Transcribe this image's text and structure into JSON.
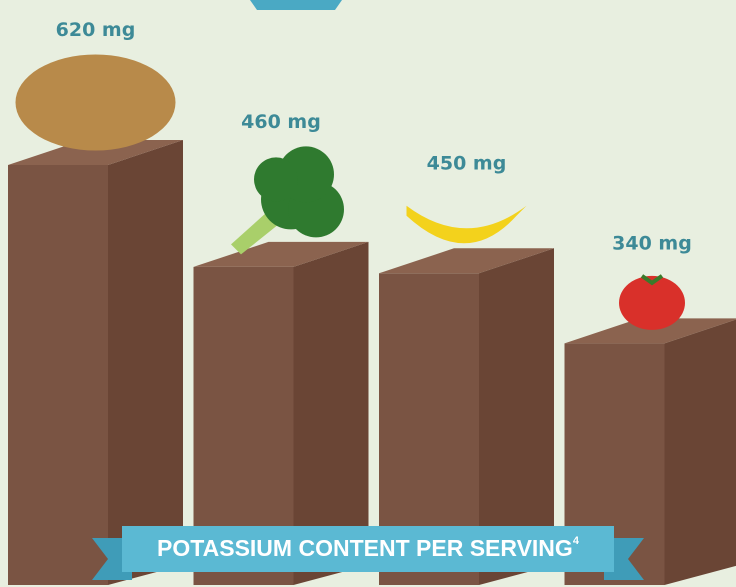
{
  "chart_data": {
    "type": "bar",
    "title": "POTASSIUM CONTENT PER SERVING",
    "title_superscript": "4",
    "categories": [
      null,
      null,
      null,
      null
    ],
    "values": [
      620,
      460,
      450,
      340
    ],
    "value_labels": [
      "620 mg",
      "460 mg",
      "450 mg",
      "340 mg"
    ],
    "color": "#7a5443"
  }
}
